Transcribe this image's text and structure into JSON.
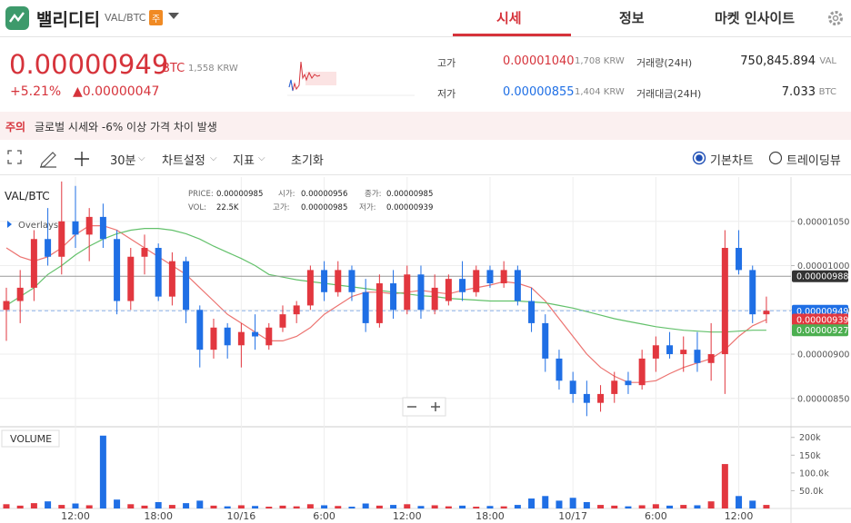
{
  "header": {
    "name": "밸리디티",
    "pair": "VAL/BTC",
    "badge": "주",
    "tabs": [
      "시세",
      "정보",
      "마켓 인사이트"
    ]
  },
  "price": {
    "last": "0.00000949",
    "unit": "BTC",
    "krw": "1,558 KRW",
    "change_pct": "+5.21%",
    "change": "▲0.00000047"
  },
  "stats": {
    "high_label": "고가",
    "high": "0.00001040",
    "high_krw": "1,708 KRW",
    "low_label": "저가",
    "low": "0.00000855",
    "low_krw": "1,404 KRW",
    "volume_label": "거래량(24H)",
    "volume": "750,845.894",
    "volume_unit": "VAL",
    "amount_label": "거래대금(24H)",
    "amount": "7.033",
    "amount_unit": "BTC"
  },
  "notice": {
    "label": "주의",
    "text": "글로벌 시세와 -6% 이상 가격 차이 발생"
  },
  "toolbar": {
    "interval": "30분",
    "settings": "차트설정",
    "indicators": "지표",
    "reset": "초기화",
    "views": [
      "기본차트",
      "트레이딩뷰"
    ]
  },
  "chart_data": {
    "type": "candlestick",
    "title": "VAL/BTC",
    "overlay_label": "Overlays",
    "info": [
      [
        {
          "label": "PRICE:",
          "value": "0.00000985"
        },
        {
          "label": "시가:",
          "value": "0.00000956"
        },
        {
          "label": "종가:",
          "value": "0.00000985"
        }
      ],
      [
        {
          "label": "VOL:",
          "value": "22.5K"
        },
        {
          "label": "고가:",
          "value": "0.00000985"
        },
        {
          "label": "저가:",
          "value": "0.00000939"
        }
      ]
    ],
    "up_color": "#e2373f",
    "down_color": "#1f6fe5",
    "open": [
      9.5e-06,
      9.6e-06,
      9.75e-06,
      1.03e-05,
      1.01e-05,
      1.05e-05,
      1.035e-05,
      1.055e-05,
      1.03e-05,
      9.6e-06,
      1.01e-05,
      1.02e-05,
      9.65e-06,
      1.005e-05,
      9.5e-06,
      9.05e-06,
      9.3e-06,
      9.1e-06,
      9.25e-06,
      9.1e-06,
      9.3e-06,
      9.45e-06,
      9.55e-06,
      9.95e-06,
      9.7e-06,
      9.95e-06,
      9.7e-06,
      9.35e-06,
      9.8e-06,
      9.5e-06,
      9.9e-06,
      9.5e-06,
      9.6e-06,
      9.85e-06,
      9.7e-06,
      9.95e-06,
      9.8e-06,
      9.95e-06,
      9.6e-06,
      9.35e-06,
      8.95e-06,
      8.7e-06,
      8.55e-06,
      8.45e-06,
      8.55e-06,
      8.7e-06,
      8.65e-06,
      8.95e-06,
      9.1e-06,
      9e-06,
      9.05e-06,
      8.9e-06,
      9e-06,
      1.02e-05,
      9.95e-06,
      9.45e-06
    ],
    "high": [
      9.75e-06,
      9.95e-06,
      1.04e-05,
      1.065e-05,
      1.095e-05,
      1.09e-05,
      1.065e-05,
      1.07e-05,
      1.04e-05,
      1.02e-05,
      1.035e-05,
      1.025e-05,
      1.015e-05,
      1.01e-05,
      9.55e-06,
      9.4e-06,
      9.35e-06,
      9.35e-06,
      9.45e-06,
      9.35e-06,
      9.55e-06,
      9.6e-06,
      1e-05,
      1.005e-05,
      1.005e-05,
      1e-05,
      9.85e-06,
      9.9e-06,
      9.95e-06,
      1e-05,
      1e-05,
      9.9e-06,
      9.9e-06,
      1.005e-05,
      1e-05,
      1e-05,
      1.005e-05,
      1e-05,
      9.75e-06,
      9.45e-06,
      9.05e-06,
      8.8e-06,
      8.7e-06,
      8.65e-06,
      8.8e-06,
      8.8e-06,
      9.05e-06,
      9.2e-06,
      9.25e-06,
      9.2e-06,
      9.25e-06,
      9.35e-06,
      1.04e-05,
      1.04e-05,
      1e-05,
      9.65e-06
    ],
    "low": [
      9.15e-06,
      9.35e-06,
      9.6e-06,
      1e-05,
      9.9e-06,
      1.02e-05,
      1.005e-05,
      1.02e-05,
      9.45e-06,
      9.5e-06,
      9.9e-06,
      9.6e-06,
      9.55e-06,
      9.35e-06,
      8.85e-06,
      8.95e-06,
      8.95e-06,
      8.85e-06,
      9.05e-06,
      9.05e-06,
      9.25e-06,
      9.35e-06,
      9.5e-06,
      9.6e-06,
      9.65e-06,
      9.6e-06,
      9.25e-06,
      9.3e-06,
      9.4e-06,
      9.45e-06,
      9.4e-06,
      9.45e-06,
      9.55e-06,
      9.6e-06,
      9.65e-06,
      9.75e-06,
      9.75e-06,
      9.55e-06,
      9.25e-06,
      8.8e-06,
      8.6e-06,
      8.45e-06,
      8.3e-06,
      8.35e-06,
      8.45e-06,
      8.55e-06,
      8.6e-06,
      8.8e-06,
      8.95e-06,
      8.8e-06,
      8.8e-06,
      8.7e-06,
      8.55e-06,
      9.9e-06,
      9.35e-06,
      9.35e-06
    ],
    "close": [
      9.6e-06,
      9.75e-06,
      1.03e-05,
      1.01e-05,
      1.05e-05,
      1.035e-05,
      1.055e-05,
      1.03e-05,
      9.6e-06,
      1.01e-05,
      1.02e-05,
      9.65e-06,
      1.005e-05,
      9.5e-06,
      9.05e-06,
      9.3e-06,
      9.1e-06,
      9.25e-06,
      9.2e-06,
      9.3e-06,
      9.45e-06,
      9.55e-06,
      9.95e-06,
      9.7e-06,
      9.95e-06,
      9.7e-06,
      9.35e-06,
      9.8e-06,
      9.5e-06,
      9.9e-06,
      9.5e-06,
      9.75e-06,
      9.85e-06,
      9.7e-06,
      9.95e-06,
      9.8e-06,
      9.95e-06,
      9.6e-06,
      9.35e-06,
      8.95e-06,
      8.7e-06,
      8.55e-06,
      8.45e-06,
      8.55e-06,
      8.7e-06,
      8.65e-06,
      8.95e-06,
      9.1e-06,
      9e-06,
      9.05e-06,
      8.9e-06,
      9e-06,
      1.02e-05,
      9.95e-06,
      9.45e-06,
      9.49e-06
    ],
    "ma": [
      {
        "color": "#ec7370",
        "values": [
          1.02e-05,
          1.01e-05,
          1.005e-05,
          1.01e-05,
          1.02e-05,
          1.035e-05,
          1.045e-05,
          1.045e-05,
          1.04e-05,
          1.03e-05,
          1.02e-05,
          1.01e-05,
          1e-05,
          9.9e-06,
          9.75e-06,
          9.6e-06,
          9.45e-06,
          9.35e-06,
          9.25e-06,
          9.15e-06,
          9.15e-06,
          9.2e-06,
          9.3e-06,
          9.45e-06,
          9.55e-06,
          9.65e-06,
          9.7e-06,
          9.7e-06,
          9.68e-06,
          9.7e-06,
          9.72e-06,
          9.7e-06,
          9.68e-06,
          9.72e-06,
          9.75e-06,
          9.78e-06,
          9.82e-06,
          9.8e-06,
          9.75e-06,
          9.6e-06,
          9.4e-06,
          9.2e-06,
          9e-06,
          8.85e-06,
          8.75e-06,
          8.68e-06,
          8.68e-06,
          8.7e-06,
          8.78e-06,
          8.85e-06,
          8.9e-06,
          8.95e-06,
          9.05e-06,
          9.2e-06,
          9.32e-06,
          9.39e-06
        ]
      },
      {
        "color": "#63c16b",
        "values": [
          9.55e-06,
          9.65e-06,
          9.75e-06,
          9.9e-06,
          1e-05,
          1.012e-05,
          1.022e-05,
          1.03e-05,
          1.036e-05,
          1.04e-05,
          1.042e-05,
          1.042e-05,
          1.04e-05,
          1.036e-05,
          1.03e-05,
          1.022e-05,
          1.015e-05,
          1.008e-05,
          1e-05,
          9.9e-06,
          9.87e-06,
          9.84e-06,
          9.82e-06,
          9.8e-06,
          9.78e-06,
          9.76e-06,
          9.74e-06,
          9.72e-06,
          9.7e-06,
          9.68e-06,
          9.66e-06,
          9.65e-06,
          9.63e-06,
          9.62e-06,
          9.61e-06,
          9.6e-06,
          9.6e-06,
          9.6e-06,
          9.59e-06,
          9.58e-06,
          9.55e-06,
          9.52e-06,
          9.48e-06,
          9.44e-06,
          9.4e-06,
          9.37e-06,
          9.34e-06,
          9.31e-06,
          9.29e-06,
          9.27e-06,
          9.26e-06,
          9.25e-06,
          9.25e-06,
          9.26e-06,
          9.27e-06,
          9.27e-06
        ]
      }
    ],
    "price_lines": [
      {
        "value": 9.88e-06,
        "color": "#333333",
        "line": "solid"
      },
      {
        "value": 9.49e-06,
        "color": "#1f6fe5",
        "line": "dashed"
      },
      {
        "value": 9.39e-06,
        "color": "#e2373f"
      },
      {
        "value": 9.27e-06,
        "color": "#4caf50"
      }
    ],
    "xlim": [
      -0.46,
      56.78
    ],
    "ylim": [
      8.18e-06,
      1.1e-05
    ],
    "xticks": [
      {
        "value": 5,
        "label": "12:00"
      },
      {
        "value": 11,
        "label": "18:00"
      },
      {
        "value": 17,
        "label": "10/16"
      },
      {
        "value": 23,
        "label": "6:00"
      },
      {
        "value": 29,
        "label": "12:00"
      },
      {
        "value": 35,
        "label": "18:00"
      },
      {
        "value": 41,
        "label": "10/17"
      },
      {
        "value": 47,
        "label": "6:00"
      },
      {
        "value": 53,
        "label": "12:00"
      }
    ],
    "yticks": [
      {
        "value": 1.05e-05,
        "label": "0.00001050"
      },
      {
        "value": 1e-05,
        "label": "0.00001000"
      },
      {
        "value": 9.5e-06,
        "label": "0.00000950"
      },
      {
        "value": 9e-06,
        "label": "0.00000900"
      },
      {
        "value": 8.5e-06,
        "label": "0.00000850"
      }
    ],
    "grid": true,
    "volume": {
      "title": "VOLUME",
      "values": [
        12000,
        8000,
        15000,
        20000,
        10000,
        14000,
        9000,
        205000,
        25000,
        12000,
        8000,
        18000,
        10000,
        15000,
        22000,
        8000,
        6000,
        9000,
        7000,
        5000,
        8000,
        6000,
        12000,
        9000,
        7000,
        5000,
        14000,
        8000,
        10000,
        12000,
        7000,
        9000,
        6000,
        8000,
        5000,
        7000,
        6000,
        10000,
        28000,
        35000,
        22000,
        30000,
        18000,
        10000,
        8000,
        6000,
        9000,
        12000,
        8000,
        10000,
        9000,
        20000,
        125000,
        35000,
        22000,
        10000
      ],
      "ylim": [
        0,
        230000
      ],
      "yticks": [
        {
          "value": 200000,
          "label": "200k"
        },
        {
          "value": 150000,
          "label": "150k"
        },
        {
          "value": 100000,
          "label": "100.0k"
        },
        {
          "value": 50000,
          "label": "50.0k"
        }
      ]
    }
  }
}
